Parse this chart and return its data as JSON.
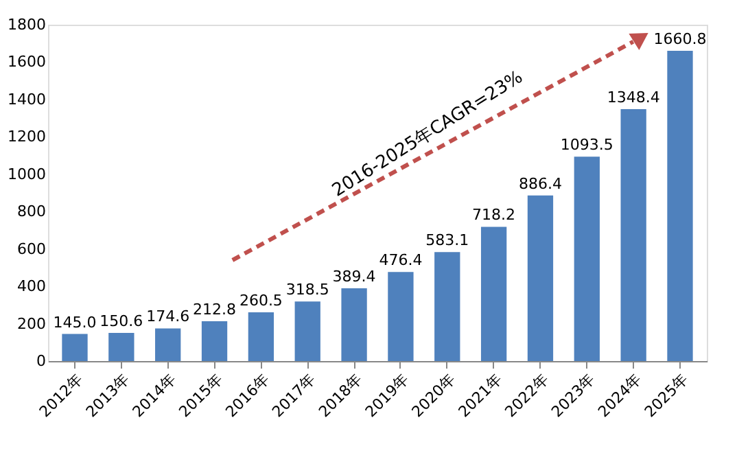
{
  "chart_data": {
    "type": "bar",
    "categories": [
      "2012年",
      "2013年",
      "2014年",
      "2015年",
      "2016年",
      "2017年",
      "2018年",
      "2019年",
      "2020年",
      "2021年",
      "2022年",
      "2023年",
      "2024年",
      "2025年"
    ],
    "values": [
      145.0,
      150.6,
      174.6,
      212.8,
      260.5,
      318.5,
      389.4,
      476.4,
      583.1,
      718.2,
      886.4,
      1093.5,
      1348.4,
      1660.8
    ],
    "value_labels": [
      "145.0",
      "150.6",
      "174.6",
      "212.8",
      "260.5",
      "318.5",
      "389.4",
      "476.4",
      "583.1",
      "718.2",
      "886.4",
      "1093.5",
      "1348.4",
      "1660.8"
    ],
    "color": "#4f81bd",
    "ylim": [
      0,
      1800
    ],
    "yticks": [
      0,
      200,
      400,
      600,
      800,
      1000,
      1200,
      1400,
      1600,
      1800
    ],
    "grid": false,
    "annotations": [
      "2016-2025年CAGR=23%"
    ]
  }
}
